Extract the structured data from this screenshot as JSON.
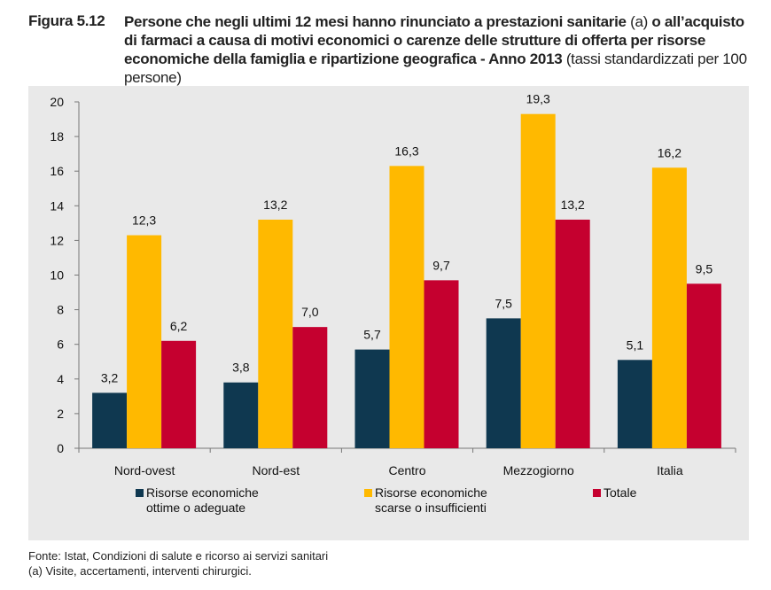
{
  "figure": {
    "label": "Figura 5.12",
    "title_bold": "Persone che negli ultimi 12 mesi hanno rinunciato a prestazioni sanitarie",
    "title_a": " (a) ",
    "title_bold2": "o all’acquisto di farmaci a causa di motivi economici o carenze delle strutture di offerta per risorse economiche della famiglia e ripartizione geografica - Anno 2013",
    "title_suffix": " (tassi standardizzati per 100 persone)"
  },
  "chart_data": {
    "type": "bar",
    "categories": [
      "Nord-ovest",
      "Nord-est",
      "Centro",
      "Mezzogiorno",
      "Italia"
    ],
    "series": [
      {
        "name": "Risorse economiche ottime o adeguate",
        "color": "#0f3850",
        "values": [
          3.2,
          3.8,
          5.7,
          7.5,
          5.1
        ],
        "labels": [
          "3,2",
          "3,8",
          "5,7",
          "7,5",
          "5,1"
        ]
      },
      {
        "name": "Risorse economiche scarse o insufficienti",
        "color": "#ffb900",
        "values": [
          12.3,
          13.2,
          16.3,
          19.3,
          16.2
        ],
        "labels": [
          "12,3",
          "13,2",
          "16,3",
          "19,3",
          "16,2"
        ]
      },
      {
        "name": "Totale",
        "color": "#c5002f",
        "values": [
          6.2,
          7.0,
          9.7,
          13.2,
          9.5
        ],
        "labels": [
          "6,2",
          "7,0",
          "9,7",
          "13,2",
          "9,5"
        ]
      }
    ],
    "ylim": [
      0,
      20
    ],
    "yticks": [
      "0",
      "2",
      "4",
      "6",
      "8",
      "10",
      "12",
      "14",
      "16",
      "18",
      "20"
    ],
    "grid": false,
    "legend_position": "bottom"
  },
  "legend": {
    "item1_line1": "Risorse economiche",
    "item1_line2": "ottime o adeguate",
    "item2_line1": "Risorse economiche",
    "item2_line2": "scarse o insufficienti",
    "item3_line1": "Totale"
  },
  "source": {
    "line1": "Fonte: Istat, Condizioni di salute e ricorso ai servizi sanitari",
    "line2": "(a) Visite, accertamenti, interventi chirurgici."
  }
}
